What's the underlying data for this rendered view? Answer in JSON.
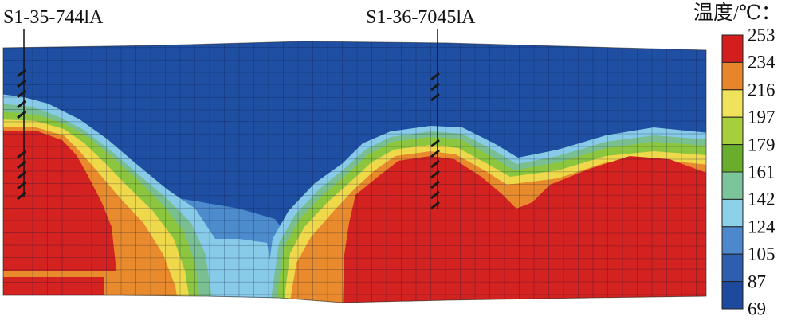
{
  "wells": [
    {
      "label": "S1-35-744lA"
    },
    {
      "label": "S1-36-7045lA"
    }
  ],
  "legend": {
    "title": "温度/℃：",
    "ticks": [
      "253",
      "234",
      "216",
      "197",
      "179",
      "161",
      "142",
      "124",
      "105",
      "87",
      "69"
    ],
    "colors": [
      "#d41e1e",
      "#e8842a",
      "#f0e25a",
      "#a6cf3d",
      "#68ad2b",
      "#7cc49a",
      "#8dd0ea",
      "#4d87cc",
      "#2e5fae",
      "#1d4a9e"
    ]
  },
  "palette": {
    "cold": "#1f4fa3",
    "hot": "#d3221f",
    "orange": "#e98b2c",
    "yellow": "#efd94b",
    "green": "#8cc63f",
    "lightgreen": "#79bf91",
    "lightblue": "#88cbe8",
    "midblue": "#4c8bcc"
  }
}
